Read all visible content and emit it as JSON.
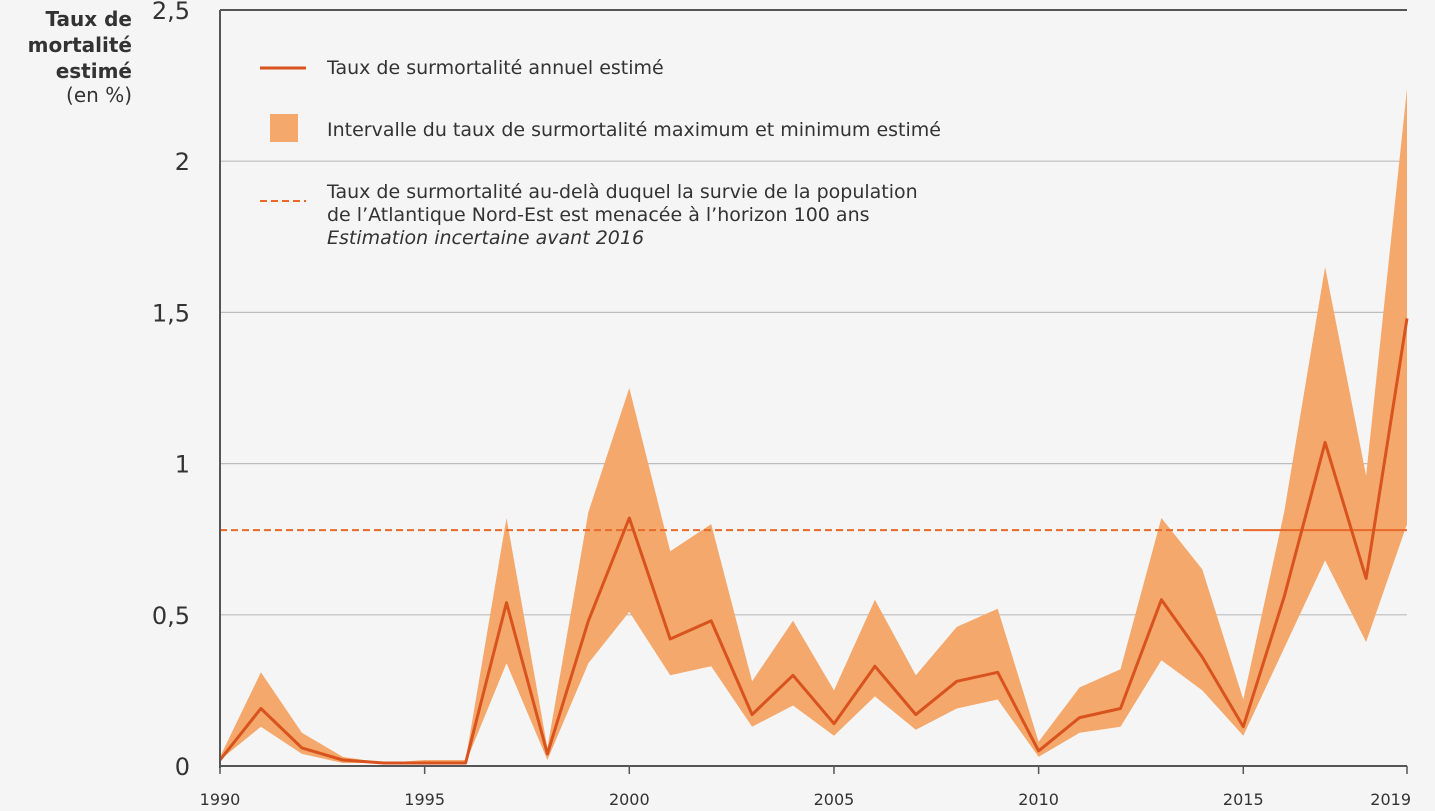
{
  "chart_data": {
    "type": "line",
    "title": "",
    "ylabel": [
      "Taux de",
      "mortalité",
      "estimé"
    ],
    "yunit": "(en %)",
    "ylim": [
      0,
      2.5
    ],
    "xlim": [
      1990,
      2019
    ],
    "y_ticks": [
      0,
      0.5,
      1,
      1.5,
      2,
      2.5
    ],
    "y_tick_labels": [
      "0",
      "0,5",
      "1",
      "1,5",
      "2",
      "2,5"
    ],
    "x_ticks": [
      1990,
      1995,
      2000,
      2005,
      2010,
      2015,
      2019
    ],
    "x_tick_labels": [
      "1990",
      "1995",
      "2000",
      "2005",
      "2010",
      "2015",
      "2019"
    ],
    "grid": true,
    "legend_position": "top-left",
    "colors": {
      "line": "#d9531e",
      "band": "#f4a86c",
      "threshold": "#e8692a",
      "grid": "#bdbdbd",
      "axis": "#555555"
    },
    "x": [
      1990,
      1991,
      1992,
      1993,
      1994,
      1995,
      1996,
      1997,
      1998,
      1999,
      2000,
      2001,
      2002,
      2003,
      2004,
      2005,
      2006,
      2007,
      2008,
      2009,
      2010,
      2011,
      2012,
      2013,
      2014,
      2015,
      2016,
      2017,
      2018,
      2019
    ],
    "series": [
      {
        "name": "Taux de surmortalité annuel estimé",
        "values": [
          0.02,
          0.19,
          0.06,
          0.02,
          0.01,
          0.01,
          0.01,
          0.54,
          0.04,
          0.48,
          0.82,
          0.42,
          0.48,
          0.17,
          0.3,
          0.14,
          0.33,
          0.17,
          0.28,
          0.31,
          0.05,
          0.16,
          0.19,
          0.55,
          0.36,
          0.13,
          0.56,
          1.07,
          0.62,
          1.48
        ]
      }
    ],
    "band": {
      "name": "Intervalle du taux de surmortalité maximum et minimum estimé",
      "upper": [
        0.03,
        0.31,
        0.11,
        0.03,
        0.01,
        0.02,
        0.02,
        0.82,
        0.06,
        0.84,
        1.25,
        0.71,
        0.8,
        0.28,
        0.48,
        0.25,
        0.55,
        0.3,
        0.46,
        0.52,
        0.08,
        0.26,
        0.32,
        0.82,
        0.65,
        0.22,
        0.84,
        1.65,
        0.96,
        2.24
      ],
      "lower": [
        0.02,
        0.13,
        0.04,
        0.01,
        0.01,
        0.01,
        0.01,
        0.34,
        0.02,
        0.34,
        0.51,
        0.3,
        0.33,
        0.13,
        0.2,
        0.1,
        0.23,
        0.12,
        0.19,
        0.22,
        0.03,
        0.11,
        0.13,
        0.35,
        0.25,
        0.1,
        0.39,
        0.68,
        0.41,
        0.8
      ]
    },
    "threshold": {
      "value": 0.78,
      "solid_from": 2015,
      "name_lines": [
        "Taux de surmortalité au-delà duquel la survie de la population",
        "de l’Atlantique Nord-Est est menacée à l’horizon 100 ans"
      ],
      "note": "Estimation incertaine avant 2016"
    }
  }
}
